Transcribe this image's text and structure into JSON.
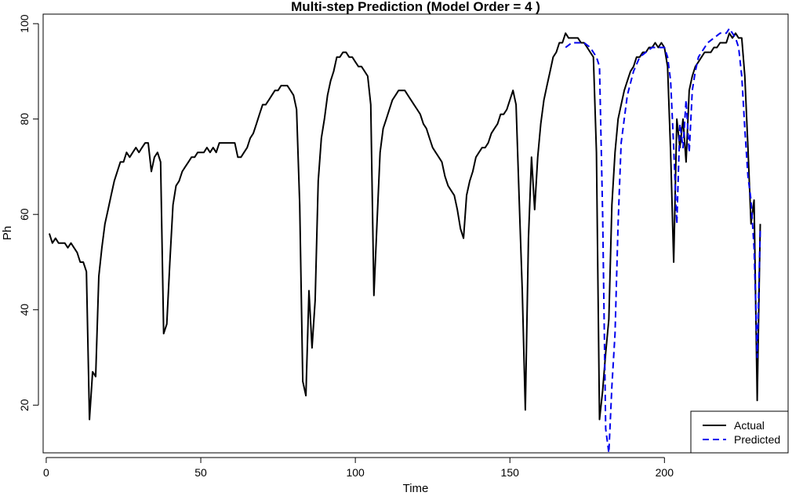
{
  "chart_data": {
    "type": "line",
    "title": "Multi-step Prediction (Model Order = 4 )",
    "xlabel": "Time",
    "ylabel": "Ph",
    "xlim": [
      -1,
      240
    ],
    "ylim": [
      10,
      102
    ],
    "x_ticks": [
      0,
      50,
      100,
      150,
      200
    ],
    "y_ticks": [
      20,
      40,
      60,
      80,
      100
    ],
    "legend": {
      "position": "bottom-right",
      "entries": [
        "Actual",
        "Predicted"
      ]
    },
    "grid": false,
    "series": [
      {
        "name": "Actual",
        "color": "#000000",
        "style": "solid",
        "x": [
          1,
          2,
          3,
          4,
          5,
          6,
          7,
          8,
          9,
          10,
          11,
          12,
          13,
          14,
          15,
          16,
          17,
          18,
          19,
          20,
          21,
          22,
          23,
          24,
          25,
          26,
          27,
          28,
          29,
          30,
          31,
          32,
          33,
          34,
          35,
          36,
          37,
          38,
          39,
          40,
          41,
          42,
          43,
          44,
          45,
          46,
          47,
          48,
          49,
          50,
          51,
          52,
          53,
          54,
          55,
          56,
          57,
          58,
          59,
          60,
          61,
          62,
          63,
          64,
          65,
          66,
          67,
          68,
          69,
          70,
          71,
          72,
          73,
          74,
          75,
          76,
          77,
          78,
          79,
          80,
          81,
          82,
          83,
          84,
          85,
          86,
          87,
          88,
          89,
          90,
          91,
          92,
          93,
          94,
          95,
          96,
          97,
          98,
          99,
          100,
          101,
          102,
          103,
          104,
          105,
          106,
          107,
          108,
          109,
          110,
          111,
          112,
          113,
          114,
          115,
          116,
          117,
          118,
          119,
          120,
          121,
          122,
          123,
          124,
          125,
          126,
          127,
          128,
          129,
          130,
          131,
          132,
          133,
          134,
          135,
          136,
          137,
          138,
          139,
          140,
          141,
          142,
          143,
          144,
          145,
          146,
          147,
          148,
          149,
          150,
          151,
          152,
          153,
          154,
          155,
          156,
          157,
          158,
          159,
          160,
          161,
          162,
          163,
          164,
          165,
          166,
          167,
          168,
          169,
          170,
          171,
          172,
          173,
          174,
          175,
          176,
          177,
          178,
          179,
          180,
          181,
          182,
          183,
          184,
          185,
          186,
          187,
          188,
          189,
          190,
          191,
          192,
          193,
          194,
          195,
          196,
          197,
          198,
          199,
          200,
          201,
          202,
          203,
          204,
          205,
          206,
          207,
          208,
          209,
          210,
          211,
          212,
          213,
          214,
          215,
          216,
          217,
          218,
          219,
          220,
          221,
          222,
          223,
          224,
          225,
          226,
          227,
          228,
          229,
          230,
          231
        ],
        "y": [
          56,
          54,
          55,
          54,
          54,
          54,
          53,
          54,
          53,
          52,
          50,
          50,
          48,
          17,
          27,
          26,
          47,
          53,
          58,
          61,
          64,
          67,
          69,
          71,
          71,
          73,
          72,
          73,
          74,
          73,
          74,
          75,
          75,
          69,
          72,
          73,
          71,
          35,
          37,
          50,
          62,
          66,
          67,
          69,
          70,
          71,
          72,
          72,
          73,
          73,
          73,
          74,
          73,
          74,
          73,
          75,
          75,
          75,
          75,
          75,
          75,
          72,
          72,
          73,
          74,
          76,
          77,
          79,
          81,
          83,
          83,
          84,
          85,
          86,
          86,
          87,
          87,
          87,
          86,
          85,
          82,
          62,
          25,
          22,
          44,
          32,
          42,
          67,
          76,
          80,
          85,
          88,
          90,
          93,
          93,
          94,
          94,
          93,
          93,
          92,
          91,
          91,
          90,
          89,
          83,
          43,
          58,
          73,
          78,
          80,
          82,
          84,
          85,
          86,
          86,
          86,
          85,
          84,
          83,
          82,
          81,
          79,
          78,
          76,
          74,
          73,
          72,
          71,
          68,
          66,
          65,
          64,
          61,
          57,
          55,
          64,
          67,
          69,
          72,
          73,
          74,
          74,
          75,
          77,
          78,
          79,
          81,
          81,
          82,
          84,
          86,
          83,
          63,
          44,
          19,
          55,
          72,
          61,
          72,
          79,
          84,
          87,
          90,
          93,
          94,
          96,
          96,
          98,
          97,
          97,
          97,
          97,
          96,
          96,
          95,
          94,
          93,
          73,
          17,
          23,
          31,
          38,
          62,
          73,
          80,
          83,
          86,
          88,
          90,
          91,
          93,
          93,
          94,
          94,
          95,
          95,
          96,
          95,
          96,
          95,
          91,
          73,
          50,
          80,
          74,
          80,
          71,
          86,
          89,
          91,
          92,
          93,
          94,
          94,
          94,
          95,
          95,
          96,
          96,
          96,
          98,
          97,
          98,
          97,
          97,
          89,
          74,
          58,
          63,
          21,
          58
        ]
      },
      {
        "name": "Predicted",
        "color": "#0000ee",
        "style": "dashed",
        "x": [
          168,
          170,
          172,
          174,
          176,
          178,
          179,
          180,
          181,
          182,
          183,
          184,
          185,
          186,
          188,
          190,
          192,
          194,
          196,
          198,
          199,
          200,
          201,
          202,
          203,
          204,
          205,
          206,
          207,
          208,
          209,
          210,
          211,
          212,
          214,
          216,
          218,
          220,
          221,
          222,
          223,
          224,
          225,
          226,
          227,
          228,
          229,
          230,
          231
        ],
        "y": [
          95,
          96,
          96,
          96,
          95,
          93,
          91,
          60,
          15,
          10,
          24,
          35,
          58,
          75,
          85,
          90,
          93,
          94,
          95,
          95,
          95,
          95,
          93,
          88,
          74,
          58,
          79,
          74,
          84,
          73,
          86,
          90,
          93,
          94,
          96,
          97,
          98,
          98,
          99,
          98,
          97,
          95,
          89,
          78,
          68,
          63,
          53,
          30,
          57
        ]
      }
    ]
  }
}
